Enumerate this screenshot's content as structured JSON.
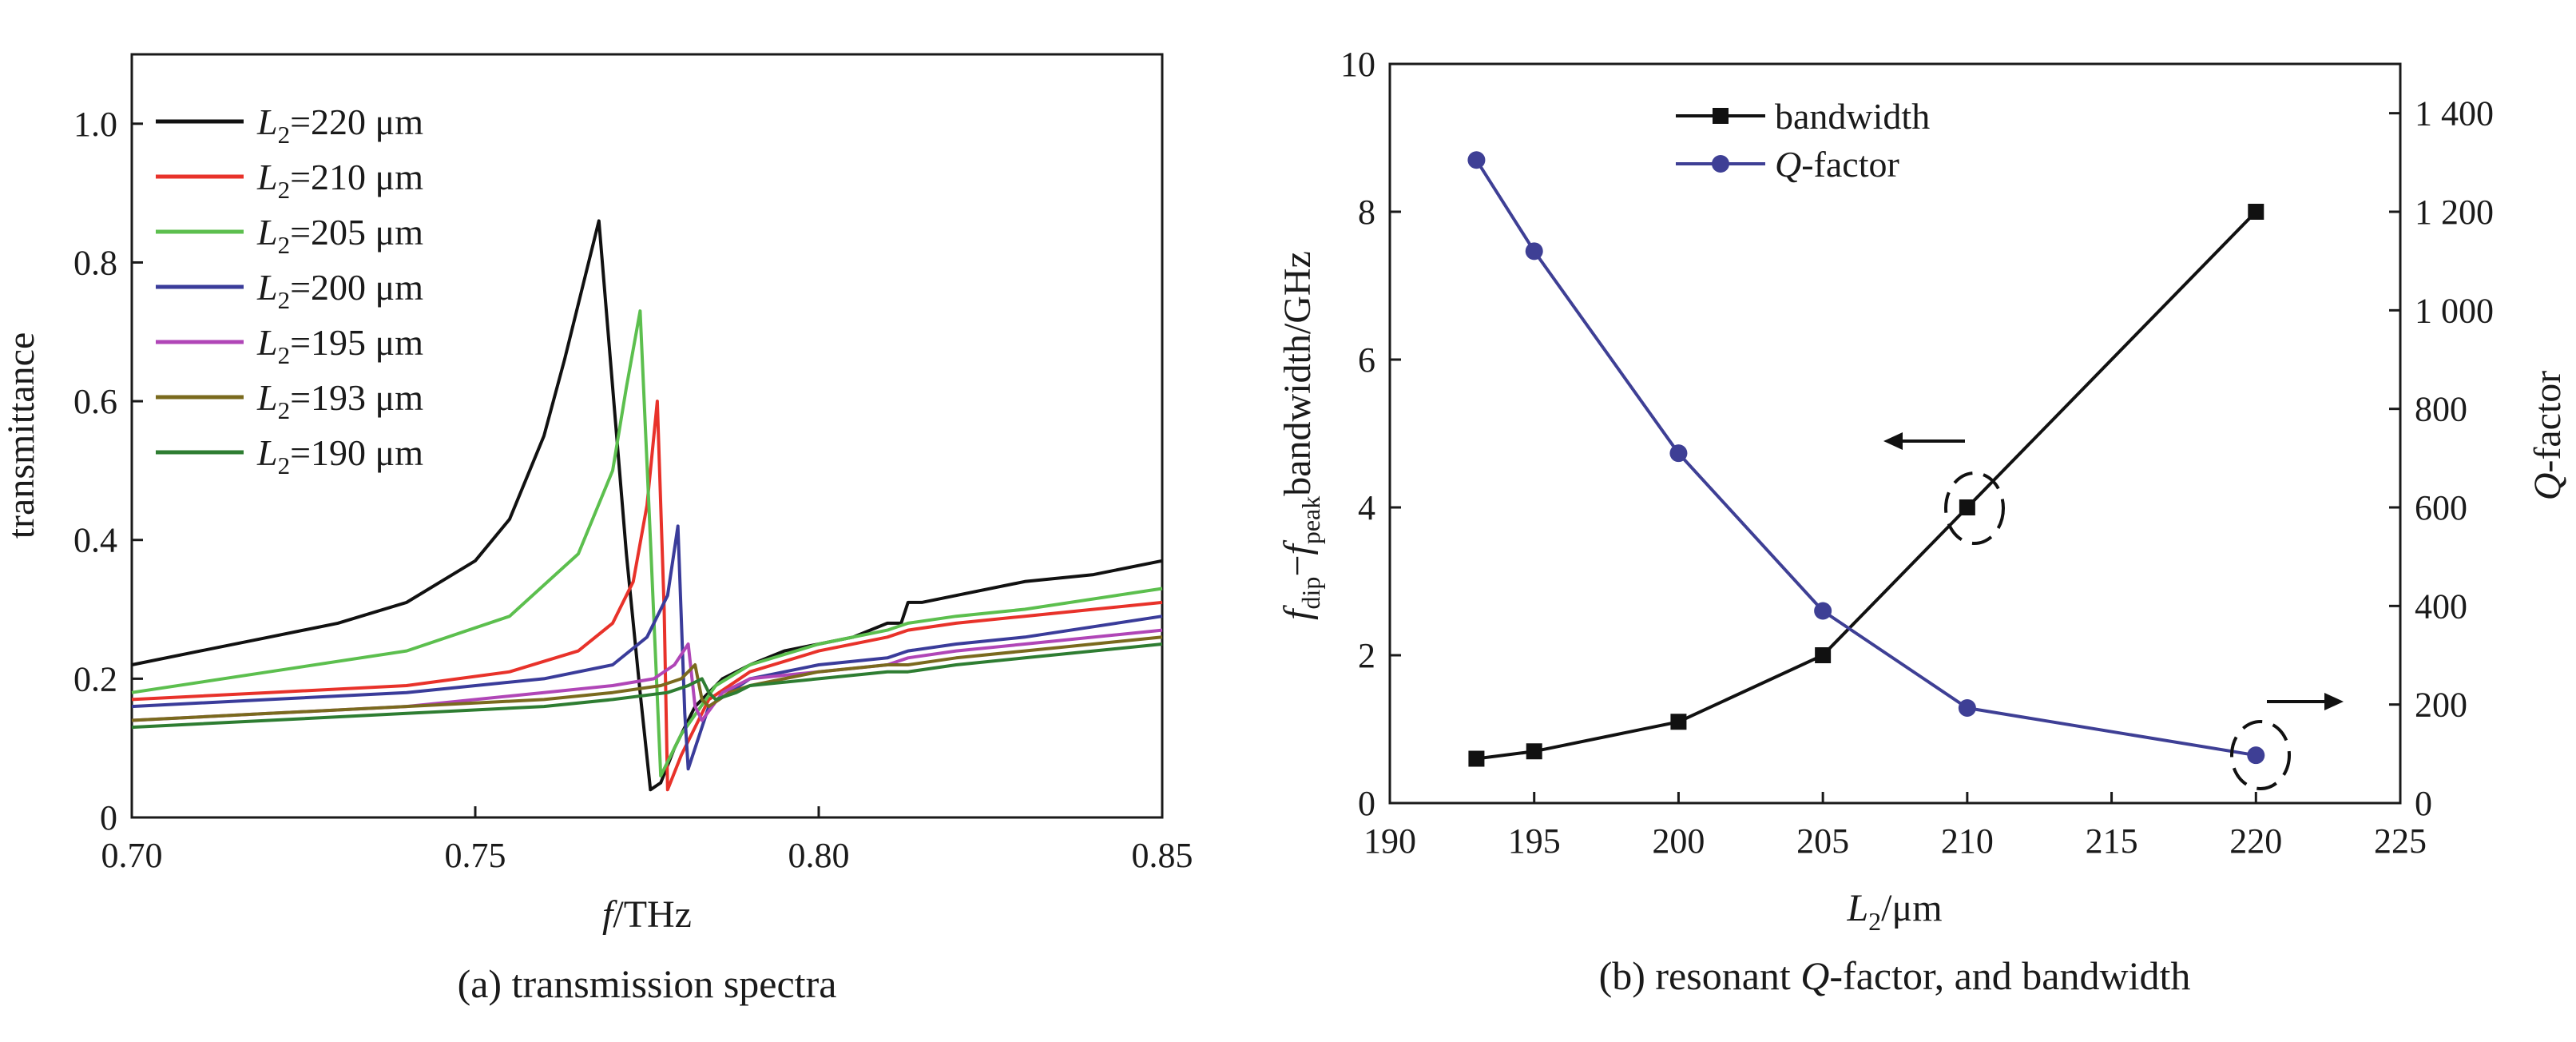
{
  "chart_data": [
    {
      "type": "line",
      "caption": "(a) transmission spectra",
      "xlabel": "f/THz",
      "ylabel": "transmittance",
      "xlim": [
        0.7,
        0.85
      ],
      "ylim": [
        0,
        1.1
      ],
      "xticks": [
        "0.70",
        "0.75",
        "0.80",
        "0.85"
      ],
      "yticks": [
        "0",
        "0.2",
        "0.4",
        "0.6",
        "0.8",
        "1.0"
      ],
      "legend_position": "top-left",
      "series": [
        {
          "name": "L2=220 μm",
          "color": "#111111",
          "f0": 0.768,
          "gamma": 0.0045,
          "fdip": 0.7765,
          "gdip": 0.0022,
          "x": [
            0.7,
            0.71,
            0.72,
            0.73,
            0.74,
            0.75,
            0.755,
            0.76,
            0.763,
            0.766,
            0.768,
            0.77,
            0.772,
            0.774,
            0.7755,
            0.777,
            0.779,
            0.782,
            0.786,
            0.79,
            0.795,
            0.8,
            0.805,
            0.81,
            0.812,
            0.813,
            0.815,
            0.82,
            0.83,
            0.84,
            0.85
          ],
          "y": [
            0.22,
            0.24,
            0.26,
            0.28,
            0.31,
            0.37,
            0.43,
            0.55,
            0.66,
            0.78,
            0.86,
            0.62,
            0.38,
            0.18,
            0.04,
            0.05,
            0.1,
            0.16,
            0.2,
            0.22,
            0.24,
            0.25,
            0.26,
            0.28,
            0.28,
            0.31,
            0.31,
            0.32,
            0.34,
            0.35,
            0.37
          ]
        },
        {
          "name": "L2=210 μm",
          "color": "#e8322a",
          "x": [
            0.7,
            0.72,
            0.74,
            0.755,
            0.765,
            0.77,
            0.773,
            0.775,
            0.7765,
            0.7775,
            0.778,
            0.78,
            0.784,
            0.79,
            0.8,
            0.81,
            0.813,
            0.82,
            0.83,
            0.85
          ],
          "y": [
            0.17,
            0.18,
            0.19,
            0.21,
            0.24,
            0.28,
            0.34,
            0.45,
            0.6,
            0.3,
            0.04,
            0.09,
            0.17,
            0.21,
            0.24,
            0.26,
            0.27,
            0.28,
            0.29,
            0.31
          ]
        },
        {
          "name": "L2=205 μm",
          "color": "#5cbf4e",
          "x": [
            0.7,
            0.72,
            0.74,
            0.755,
            0.765,
            0.77,
            0.772,
            0.774,
            0.7755,
            0.777,
            0.78,
            0.785,
            0.79,
            0.8,
            0.81,
            0.813,
            0.82,
            0.83,
            0.85
          ],
          "y": [
            0.18,
            0.21,
            0.24,
            0.29,
            0.38,
            0.5,
            0.62,
            0.73,
            0.4,
            0.06,
            0.12,
            0.19,
            0.22,
            0.25,
            0.27,
            0.28,
            0.29,
            0.3,
            0.33
          ]
        },
        {
          "name": "L2=200 μm",
          "color": "#3a3c9a",
          "x": [
            0.7,
            0.72,
            0.74,
            0.76,
            0.77,
            0.775,
            0.778,
            0.7795,
            0.7805,
            0.781,
            0.784,
            0.79,
            0.8,
            0.81,
            0.813,
            0.82,
            0.83,
            0.85
          ],
          "y": [
            0.16,
            0.17,
            0.18,
            0.2,
            0.22,
            0.26,
            0.32,
            0.42,
            0.15,
            0.07,
            0.16,
            0.2,
            0.22,
            0.23,
            0.24,
            0.25,
            0.26,
            0.29
          ]
        },
        {
          "name": "L2=195 μm",
          "color": "#b046b7",
          "x": [
            0.7,
            0.72,
            0.74,
            0.76,
            0.77,
            0.776,
            0.779,
            0.781,
            0.782,
            0.783,
            0.786,
            0.79,
            0.8,
            0.81,
            0.813,
            0.82,
            0.83,
            0.85
          ],
          "y": [
            0.14,
            0.15,
            0.16,
            0.18,
            0.19,
            0.2,
            0.22,
            0.25,
            0.16,
            0.14,
            0.18,
            0.2,
            0.21,
            0.22,
            0.23,
            0.24,
            0.25,
            0.27
          ]
        },
        {
          "name": "L2=193 μm",
          "color": "#7a6a1e",
          "x": [
            0.7,
            0.72,
            0.74,
            0.76,
            0.77,
            0.777,
            0.78,
            0.782,
            0.783,
            0.784,
            0.787,
            0.79,
            0.8,
            0.81,
            0.813,
            0.82,
            0.83,
            0.85
          ],
          "y": [
            0.14,
            0.15,
            0.16,
            0.17,
            0.18,
            0.19,
            0.2,
            0.22,
            0.17,
            0.16,
            0.18,
            0.19,
            0.21,
            0.22,
            0.22,
            0.23,
            0.24,
            0.26
          ]
        },
        {
          "name": "L2=190 μm",
          "color": "#2e7d32",
          "x": [
            0.7,
            0.72,
            0.74,
            0.76,
            0.77,
            0.778,
            0.781,
            0.783,
            0.784,
            0.785,
            0.788,
            0.79,
            0.8,
            0.81,
            0.813,
            0.82,
            0.83,
            0.85
          ],
          "y": [
            0.13,
            0.14,
            0.15,
            0.16,
            0.17,
            0.18,
            0.19,
            0.2,
            0.18,
            0.17,
            0.18,
            0.19,
            0.2,
            0.21,
            0.21,
            0.22,
            0.23,
            0.25
          ]
        }
      ]
    },
    {
      "type": "line",
      "caption": "(b) resonant Q-factor, and bandwidth",
      "xlabel": "L2/μm",
      "ylabel_left": "f_dip−f_peak bandwidth/GHz",
      "ylabel_right": "Q-factor",
      "xlim": [
        190,
        225
      ],
      "ylim_left": [
        0,
        10
      ],
      "ylim_right": [
        0,
        1500
      ],
      "xticks": [
        "190",
        "195",
        "200",
        "205",
        "210",
        "215",
        "220",
        "225"
      ],
      "yticks_left": [
        "0",
        "2",
        "4",
        "6",
        "8",
        "10"
      ],
      "yticks_right": [
        "0",
        "200",
        "400",
        "600",
        "800",
        "1 000",
        "1 200",
        "1 400"
      ],
      "legend_position": "top-center",
      "series": [
        {
          "name": "bandwidth",
          "color": "#111111",
          "marker": "square",
          "axis": "left",
          "x": [
            193,
            195,
            200,
            205,
            210,
            220
          ],
          "y": [
            0.6,
            0.7,
            1.1,
            2.0,
            4.0,
            8.0
          ]
        },
        {
          "name": "Q-factor",
          "color": "#3e3f95",
          "marker": "circle",
          "axis": "right",
          "x": [
            193,
            195,
            200,
            205,
            210,
            220
          ],
          "y": [
            1305,
            1120,
            710,
            390,
            193,
            97
          ]
        }
      ]
    }
  ]
}
